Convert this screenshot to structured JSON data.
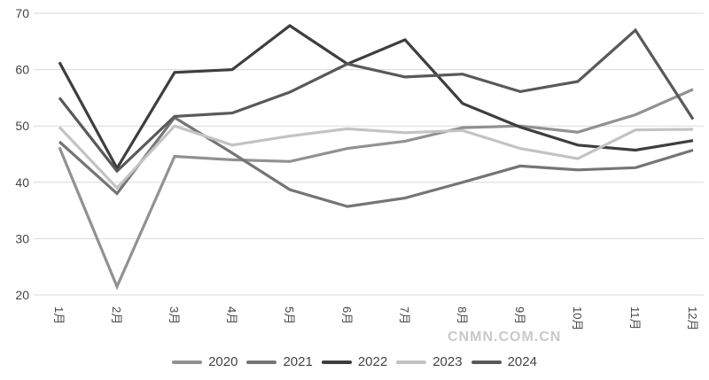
{
  "watermark": "CNMN.COM.CN",
  "chart_data": {
    "type": "line",
    "title": "",
    "xlabel": "",
    "ylabel": "",
    "categories": [
      "1月",
      "2月",
      "3月",
      "4月",
      "5月",
      "6月",
      "7月",
      "8月",
      "9月",
      "10月",
      "11月",
      "12月"
    ],
    "series": [
      {
        "name": "2020",
        "color": "#919191",
        "values": [
          46.2,
          21.5,
          44.6,
          44.0,
          43.7,
          46.0,
          47.3,
          49.7,
          50.0,
          48.9,
          52.0,
          56.5
        ]
      },
      {
        "name": "2021",
        "color": "#757575",
        "values": [
          47.2,
          38.0,
          51.5,
          45.2,
          38.7,
          35.7,
          37.2,
          40.0,
          42.9,
          42.2,
          42.6,
          45.7
        ]
      },
      {
        "name": "2022",
        "color": "#3e3e3e",
        "values": [
          61.3,
          42.5,
          59.5,
          60.0,
          67.8,
          61.0,
          65.3,
          54.0,
          49.8,
          46.6,
          45.7,
          47.4
        ]
      },
      {
        "name": "2023",
        "color": "#c3c3c3",
        "values": [
          49.8,
          39.0,
          50.0,
          46.6,
          48.2,
          49.5,
          48.8,
          49.2,
          46.0,
          44.2,
          49.3,
          49.4
        ]
      },
      {
        "name": "2024",
        "color": "#595959",
        "values": [
          55.0,
          42.0,
          51.7,
          52.3,
          56.0,
          61.0,
          58.7,
          59.2,
          56.1,
          57.9,
          67.0,
          51.2
        ]
      }
    ],
    "ylim": [
      20,
      70
    ],
    "yticks": [
      20,
      30,
      40,
      50,
      60,
      70
    ],
    "grid": "horizontal",
    "gridline_color": "#d9d9d9",
    "tick_label_color": "#444444",
    "legend_position": "bottom"
  }
}
